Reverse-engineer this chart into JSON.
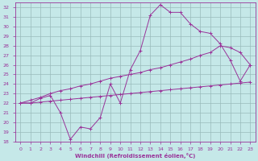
{
  "xlabel": "Windchill (Refroidissement éolien,°C)",
  "background_color": "#c5e8e8",
  "line_color": "#993399",
  "grid_color": "#99bbbb",
  "xlim": [
    -0.5,
    23.5
  ],
  "ylim": [
    18,
    32.5
  ],
  "xticks": [
    0,
    1,
    2,
    3,
    4,
    5,
    6,
    7,
    8,
    9,
    10,
    11,
    12,
    13,
    14,
    15,
    16,
    17,
    18,
    19,
    20,
    21,
    22,
    23
  ],
  "yticks": [
    18,
    19,
    20,
    21,
    22,
    23,
    24,
    25,
    26,
    27,
    28,
    29,
    30,
    31,
    32
  ],
  "series1_x": [
    0,
    1,
    2,
    3,
    4,
    5,
    6,
    7,
    8,
    9,
    10,
    11,
    12,
    13,
    14,
    15,
    16,
    17,
    18,
    19,
    20,
    21,
    22,
    23
  ],
  "series1_y": [
    22.0,
    22.0,
    22.5,
    22.8,
    21.0,
    18.2,
    19.5,
    19.3,
    20.5,
    24.0,
    22.0,
    25.5,
    27.5,
    31.2,
    32.3,
    31.5,
    31.5,
    30.3,
    29.5,
    29.3,
    28.2,
    26.5,
    24.3,
    26.0
  ],
  "series2_x": [
    0,
    1,
    2,
    3,
    4,
    5,
    6,
    7,
    8,
    9,
    10,
    11,
    12,
    13,
    14,
    15,
    16,
    17,
    18,
    19,
    20,
    21,
    22,
    23
  ],
  "series2_y": [
    22.0,
    22.3,
    22.6,
    23.0,
    23.3,
    23.5,
    23.8,
    24.0,
    24.3,
    24.6,
    24.8,
    25.0,
    25.2,
    25.5,
    25.7,
    26.0,
    26.3,
    26.6,
    27.0,
    27.3,
    28.0,
    27.8,
    27.3,
    26.0
  ],
  "series3_x": [
    0,
    1,
    2,
    3,
    4,
    5,
    6,
    7,
    8,
    9,
    10,
    11,
    12,
    13,
    14,
    15,
    16,
    17,
    18,
    19,
    20,
    21,
    22,
    23
  ],
  "series3_y": [
    22.0,
    22.0,
    22.1,
    22.2,
    22.3,
    22.4,
    22.5,
    22.6,
    22.7,
    22.8,
    22.9,
    23.0,
    23.1,
    23.2,
    23.3,
    23.4,
    23.5,
    23.6,
    23.7,
    23.8,
    23.9,
    24.0,
    24.1,
    24.2
  ]
}
